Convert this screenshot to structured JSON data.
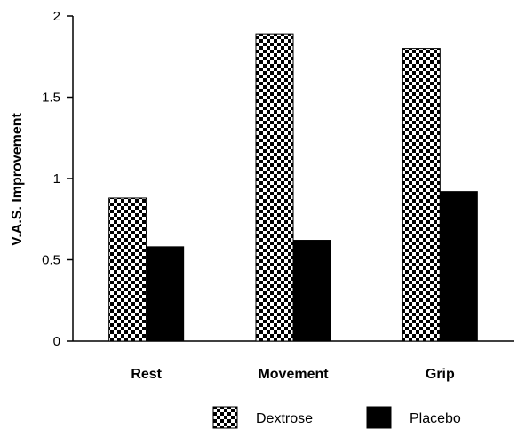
{
  "chart_data": {
    "type": "bar",
    "title": "",
    "xlabel": "",
    "ylabel": "V.A.S. Improvement",
    "categories": [
      "Rest",
      "Movement",
      "Grip"
    ],
    "series": [
      {
        "name": "Dextrose",
        "values": [
          0.88,
          1.89,
          1.8
        ],
        "fill": "checkered"
      },
      {
        "name": "Placebo",
        "values": [
          0.58,
          0.62,
          0.92
        ],
        "fill": "#000000"
      }
    ],
    "ylim": [
      0,
      2
    ],
    "yticks": [
      0,
      0.5,
      1,
      1.5,
      2
    ],
    "ytick_labels": [
      "0",
      "0.5",
      "1",
      "1.5",
      "2"
    ],
    "grid": false,
    "legend_position": "bottom-right"
  }
}
